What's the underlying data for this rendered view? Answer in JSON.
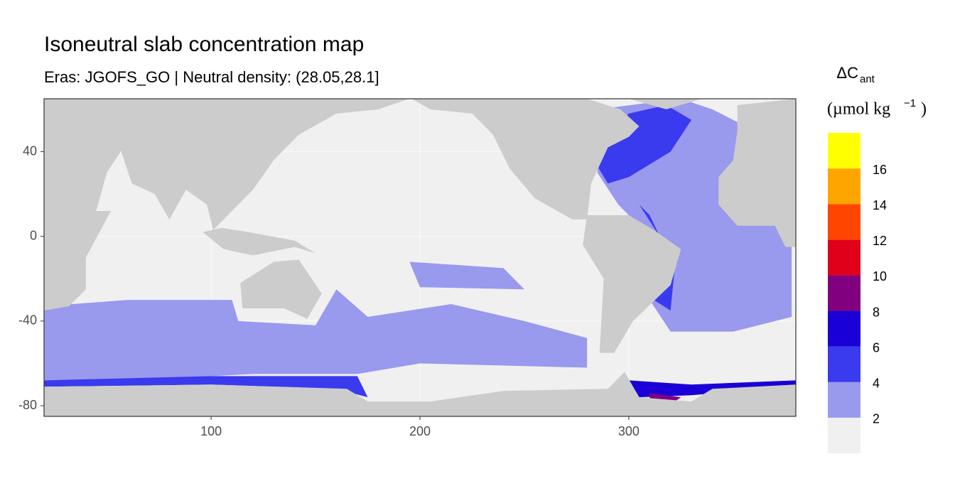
{
  "chart_data": {
    "type": "map",
    "title": "Isoneutral slab concentration map",
    "subtitle": "Eras: JGOFS_GO | Neutral density: (28.05,28.1]",
    "xlim": [
      20,
      380
    ],
    "xticks": [
      100,
      200,
      300
    ],
    "ylim": [
      -85,
      65
    ],
    "yticks": [
      40,
      0,
      -40,
      -80
    ],
    "grid": true,
    "legend": {
      "title_main": "ΔC",
      "title_sub": "ant",
      "unit_main": "(µmol kg",
      "unit_sup": "−1",
      "unit_end": ")",
      "limits": [
        0,
        18
      ],
      "breaks": [
        2,
        4,
        6,
        8,
        10,
        12,
        14,
        16
      ],
      "colors": [
        "#f0f0f0",
        "#9999ee",
        "#3a3aee",
        "#1a00d6",
        "#800080",
        "#e0001a",
        "#ff4500",
        "#ffa500",
        "#ffff00"
      ]
    }
  }
}
